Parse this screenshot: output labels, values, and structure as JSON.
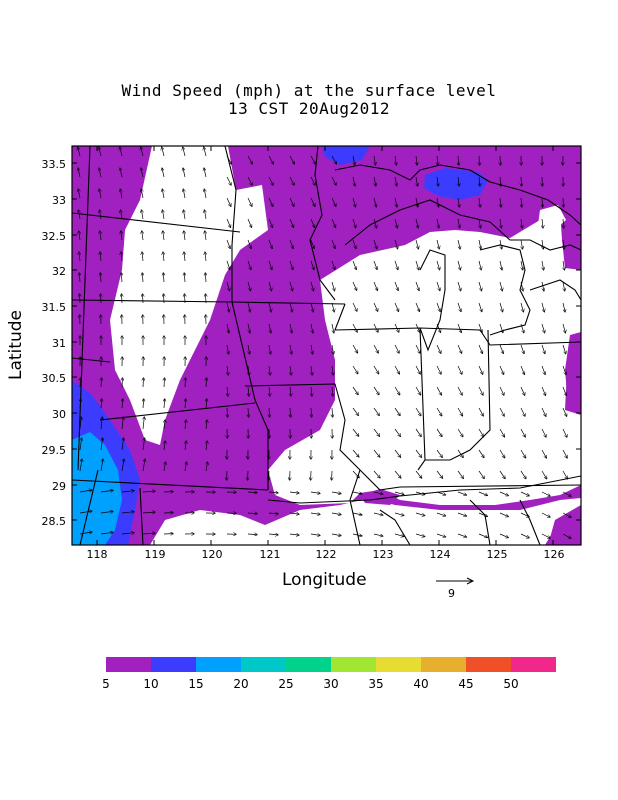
{
  "title": {
    "line1": "Wind Speed (mph) at the surface level",
    "line2": "13 CST 20Aug2012"
  },
  "axes": {
    "xlabel": "Longitude",
    "ylabel": "Latitude",
    "xticks": [
      "118",
      "119",
      "120",
      "121",
      "122",
      "123",
      "124",
      "125",
      "126"
    ],
    "yticks": [
      "33.5",
      "33",
      "32.5",
      "32",
      "31.5",
      "31",
      "30.5",
      "30",
      "29.5",
      "29",
      "28.5"
    ]
  },
  "reference_vector": {
    "label": "9"
  },
  "colorbar": {
    "colors": [
      "#a020c0",
      "#3c3cff",
      "#00a0ff",
      "#00c8c8",
      "#00d28c",
      "#a0e632",
      "#e6dc32",
      "#e6af2d",
      "#f05028",
      "#f0288c"
    ],
    "labels": [
      "5",
      "10",
      "15",
      "20",
      "25",
      "30",
      "35",
      "40",
      "45",
      "50"
    ]
  },
  "palette": {
    "purple": "#a020c0",
    "blue": "#3c3cff",
    "lightblue": "#00a0ff",
    "white": "#ffffff"
  }
}
